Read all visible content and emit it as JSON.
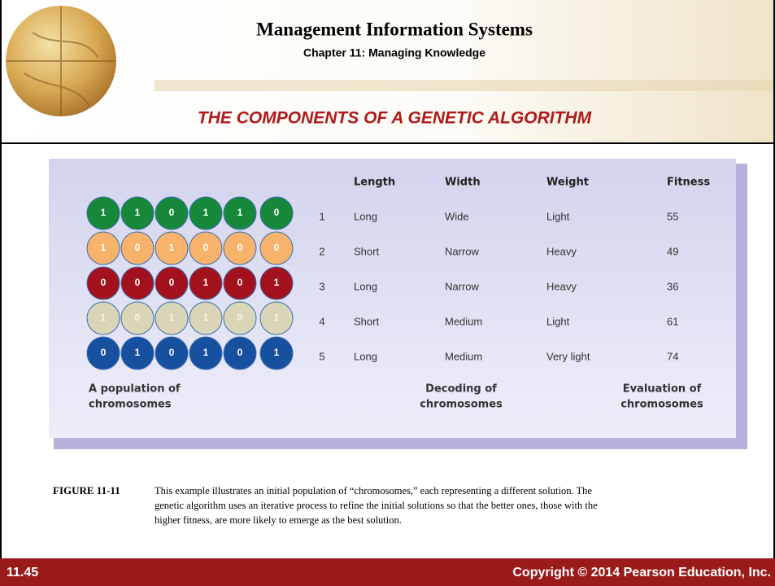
{
  "header": {
    "title": "Management Information Systems",
    "subtitle": "Chapter 11: Managing Knowledge"
  },
  "slide_title": "THE COMPONENTS OF A GENETIC ALGORITHM",
  "figure": {
    "columns": [
      "Length",
      "Width",
      "Weight",
      "Fitness"
    ],
    "rows": [
      {
        "number": 1,
        "genes": [
          1,
          1,
          0,
          1,
          1,
          0
        ],
        "color": "#17883a",
        "cells": [
          "Long",
          "Wide",
          "Light",
          55
        ]
      },
      {
        "number": 2,
        "genes": [
          1,
          0,
          1,
          0,
          0,
          0
        ],
        "color": "#f7b26c",
        "cells": [
          "Short",
          "Narrow",
          "Heavy",
          49
        ]
      },
      {
        "number": 3,
        "genes": [
          0,
          0,
          0,
          1,
          0,
          1
        ],
        "color": "#a3111c",
        "cells": [
          "Long",
          "Narrow",
          "Heavy",
          36
        ]
      },
      {
        "number": 4,
        "genes": [
          1,
          0,
          1,
          1,
          0,
          1
        ],
        "color": "#d9d5b6",
        "cells": [
          "Short",
          "Medium",
          "Light",
          61
        ]
      },
      {
        "number": 5,
        "genes": [
          0,
          1,
          0,
          1,
          0,
          1
        ],
        "color": "#16509f",
        "cells": [
          "Long",
          "Medium",
          "Very light",
          74
        ]
      }
    ],
    "labels": {
      "population": [
        "A population of",
        "chromosomes"
      ],
      "decoding": [
        "Decoding of",
        "chromosomes"
      ],
      "evaluation": [
        "Evaluation of",
        "chromosomes"
      ]
    }
  },
  "caption": {
    "label": "FIGURE 11-11",
    "lines": [
      "This example illustrates an initial population of “chromosomes,” each representing a different solution. The",
      "genetic algorithm uses an iterative process to refine the initial solutions so that the better ones, those with the",
      "higher fitness, are more likely to emerge as the best solution."
    ]
  },
  "footer": {
    "number": "11.45",
    "copyright": "Copyright © 2014 Pearson Education, Inc."
  }
}
